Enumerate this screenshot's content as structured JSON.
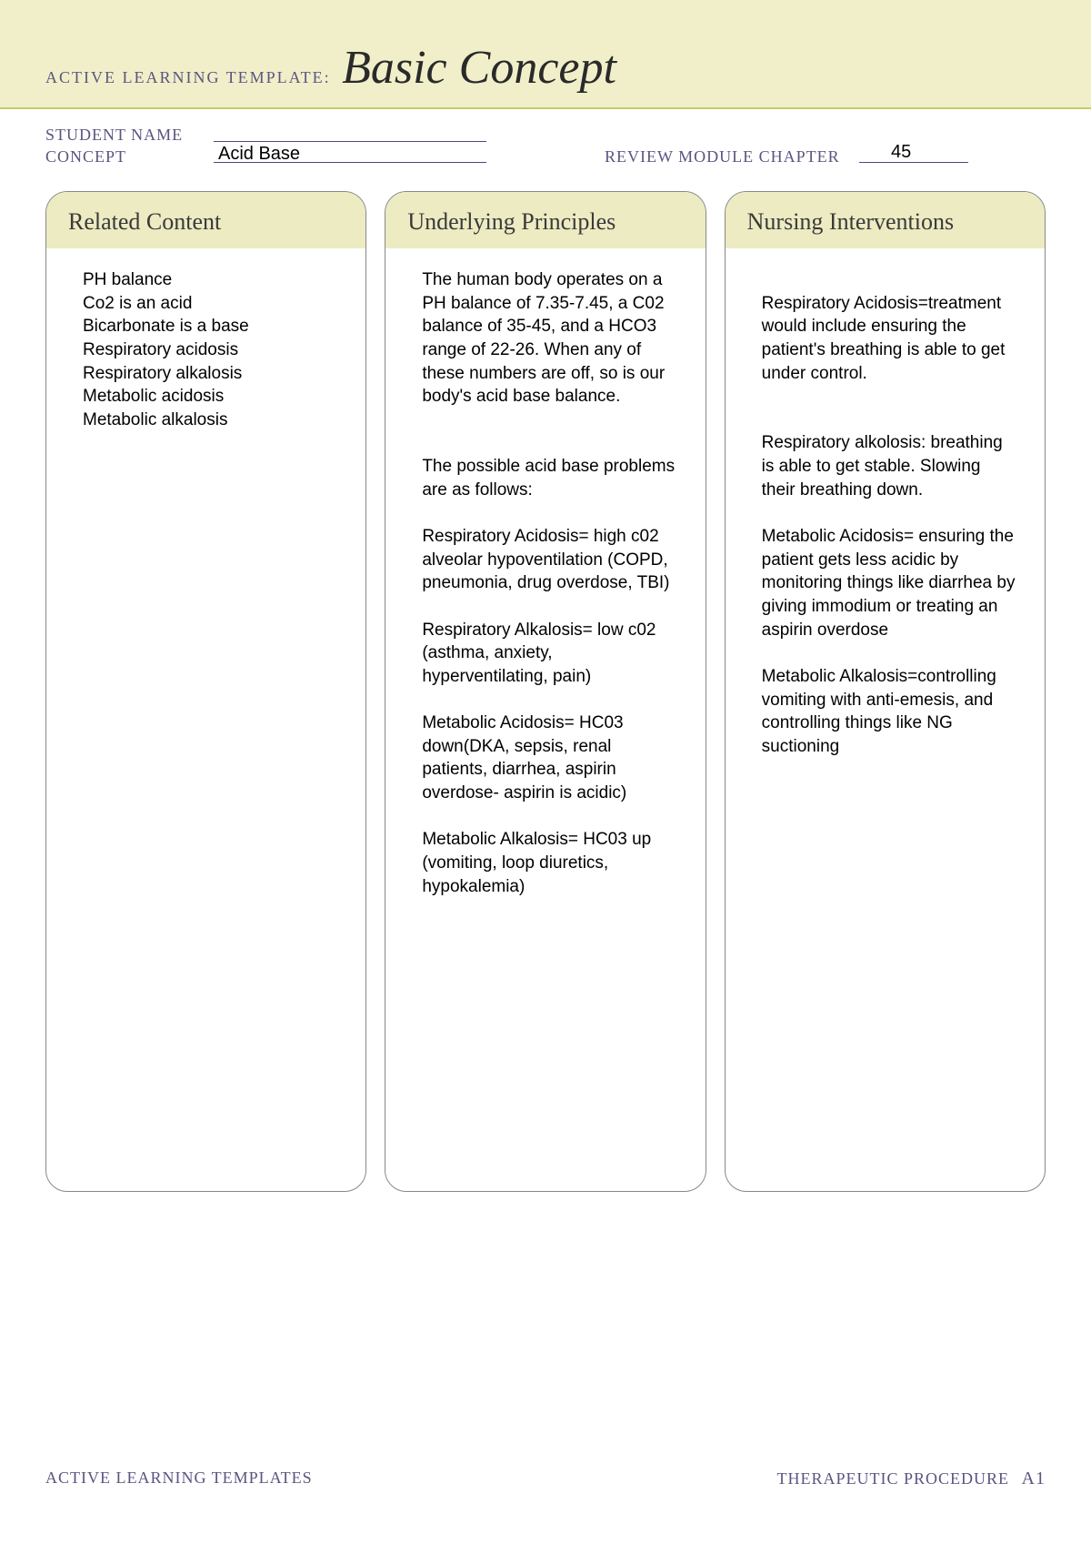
{
  "colors": {
    "header_band_bg": "#f0efc9",
    "header_band_border": "#c9c968",
    "meta_text": "#5a5580",
    "underline": "#4a4a7a",
    "card_border": "#888888",
    "card_header_bg": "#ecebc2",
    "body_text": "#000000",
    "page_bg": "#ffffff"
  },
  "header": {
    "prefix": "ACTIVE LEARNING TEMPLATE:",
    "title": "Basic Concept"
  },
  "meta": {
    "student_name_label": "STUDENT NAME",
    "student_name_value": "",
    "concept_label": "CONCEPT",
    "concept_value": "Acid Base",
    "review_label": "REVIEW MODULE CHAPTER",
    "chapter_value": "45"
  },
  "columns": [
    {
      "title": "Related Content",
      "body": "PH balance\nCo2 is an acid\nBicarbonate is a base\nRespiratory acidosis\nRespiratory alkalosis\nMetabolic acidosis\nMetabolic alkalosis"
    },
    {
      "title": "Underlying Principles",
      "body": "The human body operates on a PH balance of 7.35-7.45, a C02 balance of 35-45, and a HCO3 range of 22-26. When any of these numbers are off, so is our body's acid base balance.\n\n\nThe possible acid base problems are as follows:\n\nRespiratory Acidosis= high c02 alveolar hypoventilation (COPD, pneumonia, drug overdose, TBI)\n\nRespiratory Alkalosis= low c02 (asthma, anxiety, hyperventilating, pain)\n\nMetabolic Acidosis= HC03 down(DKA, sepsis, renal patients, diarrhea, aspirin overdose- aspirin is acidic)\n\nMetabolic Alkalosis= HC03 up (vomiting, loop diuretics, hypokalemia)"
    },
    {
      "title": "Nursing Interventions",
      "body": "\nRespiratory Acidosis=treatment would include ensuring the patient's breathing is able to get under control.\n\n\nRespiratory alkolosis: breathing is able to get stable. Slowing their breathing down.\n\nMetabolic Acidosis= ensuring the patient gets less acidic by monitoring things like diarrhea by giving immodium or treating an aspirin overdose\n\nMetabolic Alkalosis=controlling vomiting with anti-emesis, and controlling things like NG suctioning"
    }
  ],
  "footer": {
    "left": "ACTIVE LEARNING TEMPLATES",
    "right": "THERAPEUTIC PROCEDURE",
    "page_code": "A1"
  }
}
